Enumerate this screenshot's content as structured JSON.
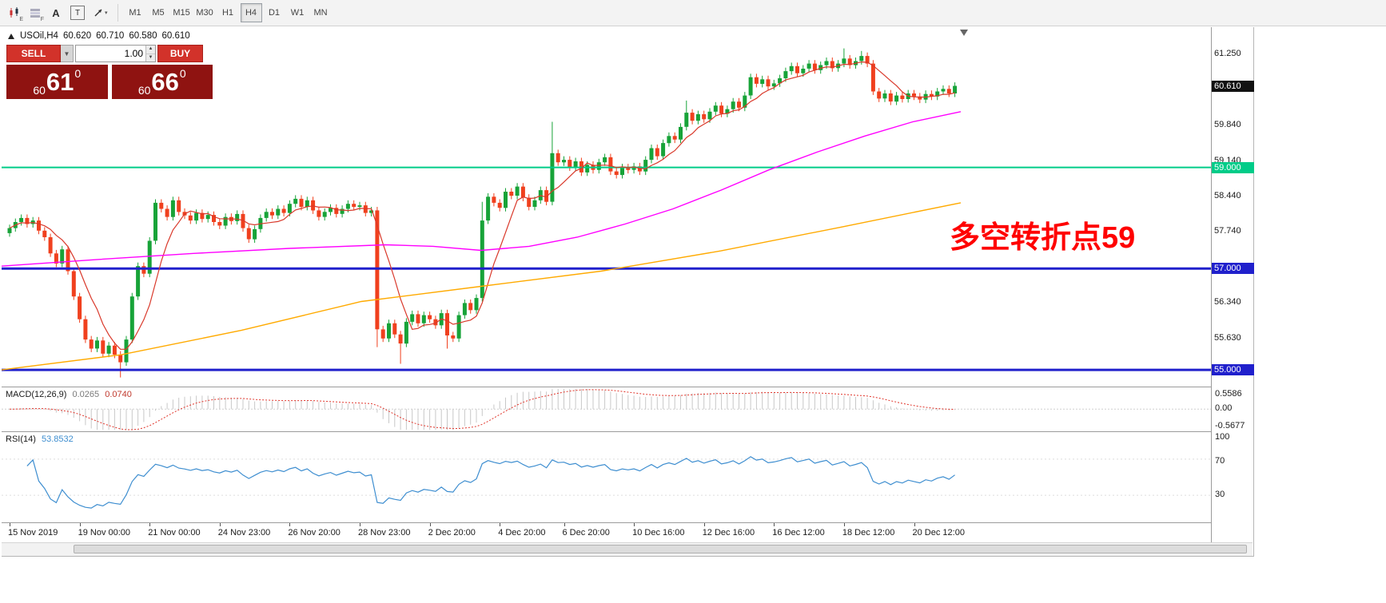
{
  "toolbar": {
    "tools": [
      {
        "id": "chart-tool",
        "sub": "E"
      },
      {
        "id": "indicators-tool",
        "sub": "F"
      },
      {
        "id": "text-tool",
        "label": "A"
      },
      {
        "id": "frame-tool",
        "label": "T"
      },
      {
        "id": "arrow-tool",
        "caret": "▾"
      }
    ],
    "timeframes": [
      "M1",
      "M5",
      "M15",
      "M30",
      "H1",
      "H4",
      "D1",
      "W1",
      "MN"
    ],
    "active_timeframe": "H4"
  },
  "symbol_bar": {
    "symbol": "USOil,H4",
    "open": "60.620",
    "high": "60.710",
    "low": "60.580",
    "close": "60.610"
  },
  "trade_panel": {
    "sell_label": "SELL",
    "buy_label": "BUY",
    "volume": "1.00",
    "sell_price": {
      "small": "60",
      "big": "61",
      "sup": "0"
    },
    "buy_price": {
      "small": "60",
      "big": "66",
      "sup": "0"
    }
  },
  "annotation": {
    "text": "多空转折点59",
    "color": "#ff0000"
  },
  "macd_panel": {
    "label": "MACD(12,26,9)",
    "main_value": "0.0265",
    "signal_value": "0.0740",
    "axis": [
      "0.5586",
      "0.00",
      "-0.5677"
    ]
  },
  "rsi_panel": {
    "label": "RSI(14)",
    "value": "53.8532",
    "axis": [
      "100",
      "70",
      "30"
    ]
  },
  "chart_data": {
    "type": "candlestick",
    "symbol": "USOil",
    "timeframe": "H4",
    "ylim": [
      54.67,
      61.77
    ],
    "x0": 10,
    "dx": 7.3,
    "up_color": "#17a338",
    "down_color": "#f0401e",
    "first_open": 57.7,
    "closes": [
      57.8,
      57.92,
      58.0,
      57.88,
      57.95,
      57.75,
      57.62,
      57.3,
      57.1,
      57.38,
      56.95,
      56.45,
      56.0,
      55.6,
      55.42,
      55.58,
      55.32,
      55.48,
      55.3,
      55.15,
      55.6,
      56.45,
      57.05,
      56.9,
      57.55,
      58.3,
      58.18,
      58.02,
      58.35,
      58.12,
      58.05,
      57.95,
      58.1,
      57.98,
      58.06,
      57.92,
      57.85,
      58.02,
      57.94,
      58.08,
      57.8,
      57.58,
      57.78,
      58.0,
      58.12,
      58.05,
      58.18,
      58.1,
      58.28,
      58.38,
      58.22,
      58.35,
      58.15,
      58.02,
      58.12,
      58.2,
      58.08,
      58.18,
      58.28,
      58.22,
      58.25,
      58.1,
      58.15,
      55.8,
      55.62,
      55.92,
      55.7,
      55.52,
      55.95,
      56.1,
      55.92,
      56.08,
      56.0,
      55.88,
      56.12,
      55.68,
      55.62,
      56.08,
      56.32,
      56.18,
      56.42,
      57.95,
      58.42,
      58.3,
      58.2,
      58.52,
      58.44,
      58.62,
      58.4,
      58.22,
      58.35,
      58.55,
      58.32,
      59.28,
      59.1,
      59.15,
      59.0,
      59.12,
      58.9,
      59.05,
      58.95,
      59.1,
      59.2,
      58.92,
      58.85,
      59.0,
      58.95,
      59.02,
      58.92,
      59.15,
      59.38,
      59.22,
      59.48,
      59.62,
      59.55,
      59.8,
      60.08,
      59.92,
      60.05,
      59.95,
      60.1,
      60.22,
      60.06,
      60.15,
      60.3,
      60.18,
      60.42,
      60.78,
      60.65,
      60.74,
      60.6,
      60.66,
      60.76,
      60.9,
      61.0,
      60.86,
      60.95,
      61.05,
      60.92,
      61.02,
      61.1,
      60.96,
      61.05,
      61.15,
      61.02,
      61.1,
      61.2,
      61.05,
      60.5,
      60.36,
      60.46,
      60.3,
      60.42,
      60.35,
      60.46,
      60.4,
      60.34,
      60.45,
      60.4,
      60.5,
      60.55,
      60.46,
      60.61
    ],
    "wicks": {
      "19": {
        "l": 54.85
      },
      "63": {
        "l": 55.45
      },
      "67": {
        "l": 55.12
      },
      "75": {
        "l": 55.42
      },
      "81": {
        "h": 58.32
      },
      "93": {
        "h": 59.9
      },
      "116": {
        "h": 60.32
      },
      "143": {
        "h": 61.35
      },
      "146": {
        "h": 61.3
      }
    },
    "ma_fast": {
      "type": "sma",
      "period": 7,
      "color": "#d9382a"
    },
    "ma_mid": {
      "color": "#ff00ff",
      "points": [
        [
          0,
          57.05
        ],
        [
          120,
          57.18
        ],
        [
          240,
          57.3
        ],
        [
          360,
          57.4
        ],
        [
          480,
          57.47
        ],
        [
          540,
          57.44
        ],
        [
          600,
          57.36
        ],
        [
          660,
          57.44
        ],
        [
          720,
          57.62
        ],
        [
          780,
          57.88
        ],
        [
          840,
          58.18
        ],
        [
          900,
          58.55
        ],
        [
          960,
          58.95
        ],
        [
          1020,
          59.3
        ],
        [
          1080,
          59.62
        ],
        [
          1140,
          59.9
        ],
        [
          1200,
          60.1
        ]
      ]
    },
    "ma_slow": {
      "color": "#ffaa00",
      "points": [
        [
          0,
          55.0
        ],
        [
          150,
          55.3
        ],
        [
          300,
          55.78
        ],
        [
          450,
          56.35
        ],
        [
          600,
          56.65
        ],
        [
          750,
          56.95
        ],
        [
          900,
          57.35
        ],
        [
          1050,
          57.82
        ],
        [
          1200,
          58.3
        ]
      ]
    },
    "levels": [
      {
        "price": 59.0,
        "color": "#00cc88",
        "width": 2,
        "badge": "59.000"
      },
      {
        "price": 57.0,
        "color": "#2020cc",
        "width": 3,
        "badge": "57.000"
      },
      {
        "price": 55.0,
        "color": "#2020cc",
        "width": 3,
        "badge": "55.000"
      }
    ],
    "current_price": {
      "value": 60.61,
      "badge": "60.610",
      "badge_color": "#111111"
    },
    "price_ticks": [
      {
        "label": "61.250",
        "price": 61.25
      },
      {
        "label": "59.840",
        "price": 59.84
      },
      {
        "label": "59.140",
        "price": 59.14
      },
      {
        "label": "58.440",
        "price": 58.44
      },
      {
        "label": "57.740",
        "price": 57.74
      },
      {
        "label": "56.340",
        "price": 56.34
      },
      {
        "label": "55.630",
        "price": 55.63
      }
    ],
    "time_labels": [
      {
        "text": "15 Nov 2019",
        "i": 0
      },
      {
        "text": "19 Nov 00:00",
        "i": 12
      },
      {
        "text": "21 Nov 00:00",
        "i": 24
      },
      {
        "text": "24 Nov 23:00",
        "i": 36
      },
      {
        "text": "26 Nov 20:00",
        "i": 48
      },
      {
        "text": "28 Nov 23:00",
        "i": 60
      },
      {
        "text": "2 Dec 20:00",
        "i": 72
      },
      {
        "text": "4 Dec 20:00",
        "i": 84
      },
      {
        "text": "6 Dec 20:00",
        "i": 95
      },
      {
        "text": "10 Dec 16:00",
        "i": 107
      },
      {
        "text": "12 Dec 16:00",
        "i": 119
      },
      {
        "text": "16 Dec 12:00",
        "i": 131
      },
      {
        "text": "18 Dec 12:00",
        "i": 143
      },
      {
        "text": "20 Dec 12:00",
        "i": 155
      }
    ],
    "macd": {
      "fast": 12,
      "slow": 26,
      "signal": 9,
      "range": [
        -0.5677,
        0.5586
      ],
      "hist_color": "#c8c8c8",
      "signal_color": "#e0342a"
    },
    "rsi": {
      "period": 14,
      "color": "#3e8ed0",
      "levels": [
        70,
        30
      ]
    }
  }
}
